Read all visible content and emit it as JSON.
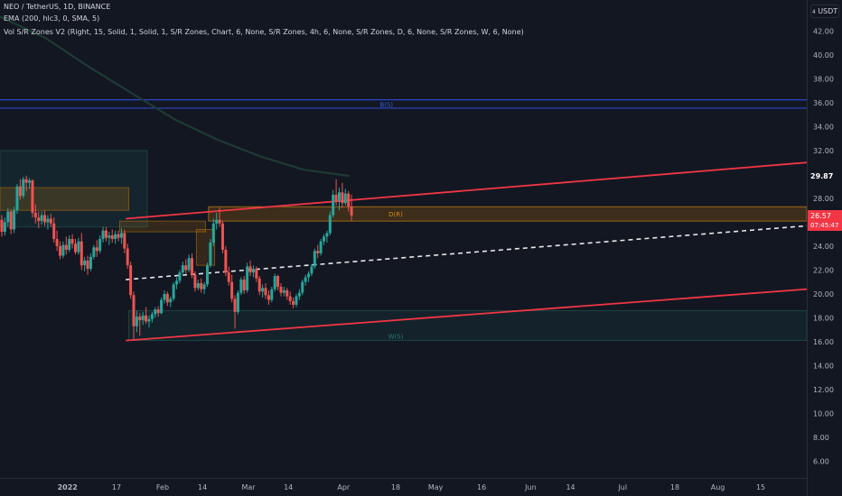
{
  "header": {
    "symbol_line": "NEO / TetherUS, 1D, BINANCE",
    "indicator_ema": "EMA (200, hlc3, 0, SMA, 5)",
    "indicator_zones": "Vol S/R Zones V2 (Right, 15, Solid, 1, Solid, 1, S/R Zones, Chart, 6, None, S/R Zones, 4h, 6, None, S/R Zones, D, 6, None, S/R Zones, W, 6, None)"
  },
  "currency_label": "USDT",
  "current_price": {
    "value": "26.57",
    "countdown": "07:45:47",
    "color": "#f23645"
  },
  "ema_value": {
    "value": "29.87",
    "color": "#1e3b34"
  },
  "chart_data": {
    "type": "candlestick",
    "title": "NEO / TetherUS, 1D, BINANCE",
    "y_axis": {
      "side": "right",
      "ticks": [
        "42.00",
        "40.00",
        "38.00",
        "36.00",
        "34.00",
        "32.00",
        "30.00",
        "28.00",
        "26.00",
        "24.00",
        "22.00",
        "20.00",
        "18.00",
        "16.00",
        "14.00",
        "12.00",
        "10.00",
        "8.00",
        "6.00"
      ],
      "range": [
        4.6,
        44.6
      ]
    },
    "x_axis": {
      "ticks": [
        {
          "label": "2022",
          "date": "2022-01-01"
        },
        {
          "label": "17",
          "date": "2022-01-17"
        },
        {
          "label": "Feb",
          "date": "2022-02-01"
        },
        {
          "label": "14",
          "date": "2022-02-14"
        },
        {
          "label": "Mar",
          "date": "2022-03-01"
        },
        {
          "label": "14",
          "date": "2022-03-14"
        },
        {
          "label": "Apr",
          "date": "2022-04-01"
        },
        {
          "label": "18",
          "date": "2022-04-18"
        },
        {
          "label": "May",
          "date": "2022-05-01"
        },
        {
          "label": "16",
          "date": "2022-05-16"
        },
        {
          "label": "Jun",
          "date": "2022-06-01"
        },
        {
          "label": "14",
          "date": "2022-06-14"
        },
        {
          "label": "Jul",
          "date": "2022-07-01"
        },
        {
          "label": "18",
          "date": "2022-07-18"
        },
        {
          "label": "Aug",
          "date": "2022-08-01"
        },
        {
          "label": "15",
          "date": "2022-08-15"
        }
      ],
      "range": [
        "2021-12-10",
        "2022-08-30"
      ]
    },
    "colors": {
      "up": "#26a69a",
      "down": "#ef5350"
    },
    "candles": [
      {
        "date": "2021-12-10",
        "o": 26.2,
        "h": 26.6,
        "l": 24.8,
        "c": 25.2
      },
      {
        "date": "2021-12-11",
        "o": 25.2,
        "h": 26.4,
        "l": 24.9,
        "c": 26.0
      },
      {
        "date": "2021-12-12",
        "o": 26.0,
        "h": 27.2,
        "l": 25.6,
        "c": 26.9
      },
      {
        "date": "2021-12-13",
        "o": 26.9,
        "h": 27.1,
        "l": 25.0,
        "c": 25.4
      },
      {
        "date": "2021-12-14",
        "o": 25.4,
        "h": 27.3,
        "l": 25.1,
        "c": 27.0
      },
      {
        "date": "2021-12-15",
        "o": 27.0,
        "h": 29.2,
        "l": 26.7,
        "c": 29.0
      },
      {
        "date": "2021-12-16",
        "o": 29.0,
        "h": 29.6,
        "l": 27.9,
        "c": 28.2
      },
      {
        "date": "2021-12-17",
        "o": 28.2,
        "h": 29.8,
        "l": 28.0,
        "c": 29.6
      },
      {
        "date": "2021-12-18",
        "o": 29.6,
        "h": 29.9,
        "l": 28.6,
        "c": 29.3
      },
      {
        "date": "2021-12-19",
        "o": 29.3,
        "h": 29.7,
        "l": 28.8,
        "c": 29.5
      },
      {
        "date": "2021-12-20",
        "o": 29.5,
        "h": 29.6,
        "l": 26.4,
        "c": 26.8
      },
      {
        "date": "2021-12-21",
        "o": 26.8,
        "h": 27.5,
        "l": 25.9,
        "c": 26.4
      },
      {
        "date": "2021-12-22",
        "o": 26.4,
        "h": 26.9,
        "l": 25.5,
        "c": 26.1
      },
      {
        "date": "2021-12-23",
        "o": 26.1,
        "h": 26.9,
        "l": 25.8,
        "c": 26.6
      },
      {
        "date": "2021-12-24",
        "o": 26.6,
        "h": 27.0,
        "l": 25.7,
        "c": 26.0
      },
      {
        "date": "2021-12-25",
        "o": 26.0,
        "h": 26.6,
        "l": 25.4,
        "c": 26.3
      },
      {
        "date": "2021-12-26",
        "o": 26.3,
        "h": 26.7,
        "l": 25.6,
        "c": 25.9
      },
      {
        "date": "2021-12-27",
        "o": 25.9,
        "h": 26.4,
        "l": 24.3,
        "c": 24.6
      },
      {
        "date": "2021-12-28",
        "o": 24.6,
        "h": 25.3,
        "l": 23.6,
        "c": 24.0
      },
      {
        "date": "2021-12-29",
        "o": 24.0,
        "h": 24.4,
        "l": 22.9,
        "c": 23.2
      },
      {
        "date": "2021-12-30",
        "o": 23.2,
        "h": 24.4,
        "l": 23.0,
        "c": 24.1
      },
      {
        "date": "2021-12-31",
        "o": 24.1,
        "h": 24.8,
        "l": 23.3,
        "c": 23.7
      },
      {
        "date": "2022-01-01",
        "o": 23.7,
        "h": 24.9,
        "l": 23.5,
        "c": 24.6
      },
      {
        "date": "2022-01-02",
        "o": 24.6,
        "h": 25.0,
        "l": 23.8,
        "c": 24.2
      },
      {
        "date": "2022-01-03",
        "o": 24.2,
        "h": 24.6,
        "l": 23.3,
        "c": 23.5
      },
      {
        "date": "2022-01-04",
        "o": 23.5,
        "h": 24.7,
        "l": 23.3,
        "c": 24.4
      },
      {
        "date": "2022-01-05",
        "o": 24.4,
        "h": 25.1,
        "l": 22.0,
        "c": 22.4
      },
      {
        "date": "2022-01-06",
        "o": 22.4,
        "h": 23.1,
        "l": 21.9,
        "c": 22.8
      },
      {
        "date": "2022-01-07",
        "o": 22.8,
        "h": 23.2,
        "l": 21.6,
        "c": 22.1
      },
      {
        "date": "2022-01-08",
        "o": 22.1,
        "h": 23.4,
        "l": 21.9,
        "c": 23.1
      },
      {
        "date": "2022-01-09",
        "o": 23.1,
        "h": 24.1,
        "l": 22.9,
        "c": 23.9
      },
      {
        "date": "2022-01-10",
        "o": 23.9,
        "h": 24.5,
        "l": 23.1,
        "c": 23.6
      },
      {
        "date": "2022-01-11",
        "o": 23.6,
        "h": 24.9,
        "l": 23.4,
        "c": 24.6
      },
      {
        "date": "2022-01-12",
        "o": 24.6,
        "h": 25.6,
        "l": 24.3,
        "c": 25.3
      },
      {
        "date": "2022-01-13",
        "o": 25.3,
        "h": 25.6,
        "l": 24.4,
        "c": 24.7
      },
      {
        "date": "2022-01-14",
        "o": 24.7,
        "h": 25.2,
        "l": 24.1,
        "c": 24.9
      },
      {
        "date": "2022-01-15",
        "o": 24.9,
        "h": 25.4,
        "l": 24.3,
        "c": 24.6
      },
      {
        "date": "2022-01-16",
        "o": 24.6,
        "h": 25.3,
        "l": 24.2,
        "c": 25.0
      },
      {
        "date": "2022-01-17",
        "o": 25.0,
        "h": 25.3,
        "l": 24.4,
        "c": 24.7
      },
      {
        "date": "2022-01-18",
        "o": 24.7,
        "h": 25.5,
        "l": 24.2,
        "c": 25.1
      },
      {
        "date": "2022-01-19",
        "o": 25.1,
        "h": 25.4,
        "l": 23.4,
        "c": 23.8
      },
      {
        "date": "2022-01-20",
        "o": 23.8,
        "h": 24.2,
        "l": 22.1,
        "c": 22.4
      },
      {
        "date": "2022-01-21",
        "o": 22.4,
        "h": 22.7,
        "l": 19.6,
        "c": 19.9
      },
      {
        "date": "2022-01-22",
        "o": 19.9,
        "h": 20.2,
        "l": 16.2,
        "c": 17.3
      },
      {
        "date": "2022-01-23",
        "o": 17.3,
        "h": 18.6,
        "l": 16.8,
        "c": 18.1
      },
      {
        "date": "2022-01-24",
        "o": 18.1,
        "h": 18.4,
        "l": 16.5,
        "c": 17.8
      },
      {
        "date": "2022-01-25",
        "o": 17.8,
        "h": 18.5,
        "l": 17.4,
        "c": 18.2
      },
      {
        "date": "2022-01-26",
        "o": 18.2,
        "h": 18.9,
        "l": 17.5,
        "c": 17.7
      },
      {
        "date": "2022-01-27",
        "o": 17.7,
        "h": 18.2,
        "l": 17.2,
        "c": 17.9
      },
      {
        "date": "2022-01-28",
        "o": 17.9,
        "h": 18.5,
        "l": 17.6,
        "c": 18.3
      },
      {
        "date": "2022-01-29",
        "o": 18.3,
        "h": 18.9,
        "l": 18.0,
        "c": 18.7
      },
      {
        "date": "2022-01-30",
        "o": 18.7,
        "h": 19.0,
        "l": 18.1,
        "c": 18.4
      },
      {
        "date": "2022-01-31",
        "o": 18.4,
        "h": 19.7,
        "l": 18.3,
        "c": 19.5
      },
      {
        "date": "2022-02-01",
        "o": 19.5,
        "h": 20.3,
        "l": 19.2,
        "c": 20.0
      },
      {
        "date": "2022-02-02",
        "o": 20.0,
        "h": 20.2,
        "l": 19.0,
        "c": 19.3
      },
      {
        "date": "2022-02-03",
        "o": 19.3,
        "h": 19.8,
        "l": 18.9,
        "c": 19.6
      },
      {
        "date": "2022-02-04",
        "o": 19.6,
        "h": 21.0,
        "l": 19.4,
        "c": 20.8
      },
      {
        "date": "2022-02-05",
        "o": 20.8,
        "h": 21.4,
        "l": 20.4,
        "c": 21.1
      },
      {
        "date": "2022-02-06",
        "o": 21.1,
        "h": 22.0,
        "l": 20.9,
        "c": 21.8
      },
      {
        "date": "2022-02-07",
        "o": 21.8,
        "h": 22.7,
        "l": 21.5,
        "c": 22.4
      },
      {
        "date": "2022-02-08",
        "o": 22.4,
        "h": 22.9,
        "l": 21.7,
        "c": 22.0
      },
      {
        "date": "2022-02-09",
        "o": 22.0,
        "h": 23.3,
        "l": 21.8,
        "c": 23.0
      },
      {
        "date": "2022-02-10",
        "o": 23.0,
        "h": 23.4,
        "l": 21.3,
        "c": 21.6
      },
      {
        "date": "2022-02-11",
        "o": 21.6,
        "h": 21.9,
        "l": 20.2,
        "c": 20.5
      },
      {
        "date": "2022-02-12",
        "o": 20.5,
        "h": 21.2,
        "l": 20.3,
        "c": 20.9
      },
      {
        "date": "2022-02-13",
        "o": 20.9,
        "h": 21.3,
        "l": 20.1,
        "c": 20.4
      },
      {
        "date": "2022-02-14",
        "o": 20.4,
        "h": 21.0,
        "l": 20.0,
        "c": 20.8
      },
      {
        "date": "2022-02-15",
        "o": 20.8,
        "h": 22.6,
        "l": 20.6,
        "c": 22.4
      },
      {
        "date": "2022-02-16",
        "o": 22.4,
        "h": 24.6,
        "l": 22.2,
        "c": 24.3
      },
      {
        "date": "2022-02-17",
        "o": 24.3,
        "h": 26.3,
        "l": 24.0,
        "c": 25.9
      },
      {
        "date": "2022-02-18",
        "o": 25.9,
        "h": 26.8,
        "l": 25.4,
        "c": 26.2
      },
      {
        "date": "2022-02-19",
        "o": 26.2,
        "h": 27.2,
        "l": 25.6,
        "c": 25.9
      },
      {
        "date": "2022-02-20",
        "o": 25.9,
        "h": 26.1,
        "l": 23.4,
        "c": 23.7
      },
      {
        "date": "2022-02-21",
        "o": 23.7,
        "h": 24.0,
        "l": 21.5,
        "c": 21.8
      },
      {
        "date": "2022-02-22",
        "o": 21.8,
        "h": 22.3,
        "l": 20.7,
        "c": 21.0
      },
      {
        "date": "2022-02-23",
        "o": 21.0,
        "h": 21.6,
        "l": 19.3,
        "c": 19.6
      },
      {
        "date": "2022-02-24",
        "o": 19.6,
        "h": 19.9,
        "l": 17.1,
        "c": 18.5
      },
      {
        "date": "2022-02-25",
        "o": 18.5,
        "h": 20.3,
        "l": 18.3,
        "c": 20.1
      },
      {
        "date": "2022-02-26",
        "o": 20.1,
        "h": 21.4,
        "l": 19.9,
        "c": 21.2
      },
      {
        "date": "2022-02-27",
        "o": 21.2,
        "h": 21.5,
        "l": 20.0,
        "c": 20.3
      },
      {
        "date": "2022-02-28",
        "o": 20.3,
        "h": 22.6,
        "l": 20.1,
        "c": 22.3
      },
      {
        "date": "2022-03-01",
        "o": 22.3,
        "h": 22.8,
        "l": 21.5,
        "c": 21.8
      },
      {
        "date": "2022-03-02",
        "o": 21.8,
        "h": 22.4,
        "l": 21.4,
        "c": 22.1
      },
      {
        "date": "2022-03-03",
        "o": 22.1,
        "h": 22.3,
        "l": 21.0,
        "c": 21.3
      },
      {
        "date": "2022-03-04",
        "o": 21.3,
        "h": 21.5,
        "l": 19.9,
        "c": 20.2
      },
      {
        "date": "2022-03-05",
        "o": 20.2,
        "h": 20.8,
        "l": 19.7,
        "c": 20.5
      },
      {
        "date": "2022-03-06",
        "o": 20.5,
        "h": 20.9,
        "l": 19.6,
        "c": 19.9
      },
      {
        "date": "2022-03-07",
        "o": 19.9,
        "h": 20.3,
        "l": 19.1,
        "c": 19.5
      },
      {
        "date": "2022-03-08",
        "o": 19.5,
        "h": 20.6,
        "l": 19.3,
        "c": 20.4
      },
      {
        "date": "2022-03-09",
        "o": 20.4,
        "h": 21.7,
        "l": 20.2,
        "c": 21.5
      },
      {
        "date": "2022-03-10",
        "o": 21.5,
        "h": 21.6,
        "l": 20.3,
        "c": 20.6
      },
      {
        "date": "2022-03-11",
        "o": 20.6,
        "h": 20.9,
        "l": 19.8,
        "c": 20.1
      },
      {
        "date": "2022-03-12",
        "o": 20.1,
        "h": 20.6,
        "l": 19.8,
        "c": 20.3
      },
      {
        "date": "2022-03-13",
        "o": 20.3,
        "h": 20.5,
        "l": 19.5,
        "c": 19.8
      },
      {
        "date": "2022-03-14",
        "o": 19.8,
        "h": 20.2,
        "l": 19.1,
        "c": 19.4
      },
      {
        "date": "2022-03-15",
        "o": 19.4,
        "h": 19.7,
        "l": 18.8,
        "c": 19.1
      },
      {
        "date": "2022-03-16",
        "o": 19.1,
        "h": 20.0,
        "l": 18.9,
        "c": 19.8
      },
      {
        "date": "2022-03-17",
        "o": 19.8,
        "h": 20.4,
        "l": 19.5,
        "c": 20.1
      },
      {
        "date": "2022-03-18",
        "o": 20.1,
        "h": 21.2,
        "l": 19.9,
        "c": 21.0
      },
      {
        "date": "2022-03-19",
        "o": 21.0,
        "h": 21.6,
        "l": 20.7,
        "c": 21.4
      },
      {
        "date": "2022-03-20",
        "o": 21.4,
        "h": 21.9,
        "l": 21.0,
        "c": 21.7
      },
      {
        "date": "2022-03-21",
        "o": 21.7,
        "h": 22.5,
        "l": 21.5,
        "c": 22.3
      },
      {
        "date": "2022-03-22",
        "o": 22.3,
        "h": 23.8,
        "l": 22.1,
        "c": 23.6
      },
      {
        "date": "2022-03-23",
        "o": 23.6,
        "h": 24.1,
        "l": 23.0,
        "c": 23.4
      },
      {
        "date": "2022-03-24",
        "o": 23.4,
        "h": 24.6,
        "l": 23.2,
        "c": 24.4
      },
      {
        "date": "2022-03-25",
        "o": 24.4,
        "h": 25.0,
        "l": 24.1,
        "c": 24.8
      },
      {
        "date": "2022-03-26",
        "o": 24.8,
        "h": 25.3,
        "l": 24.3,
        "c": 25.1
      },
      {
        "date": "2022-03-27",
        "o": 25.1,
        "h": 26.9,
        "l": 24.9,
        "c": 26.6
      },
      {
        "date": "2022-03-28",
        "o": 26.6,
        "h": 28.7,
        "l": 26.4,
        "c": 28.3
      },
      {
        "date": "2022-03-29",
        "o": 28.3,
        "h": 29.6,
        "l": 27.4,
        "c": 27.8
      },
      {
        "date": "2022-03-30",
        "o": 27.8,
        "h": 28.9,
        "l": 27.0,
        "c": 28.5
      },
      {
        "date": "2022-03-31",
        "o": 28.5,
        "h": 29.3,
        "l": 27.2,
        "c": 27.6
      },
      {
        "date": "2022-04-01",
        "o": 27.6,
        "h": 28.8,
        "l": 27.4,
        "c": 28.4
      },
      {
        "date": "2022-04-02",
        "o": 28.4,
        "h": 28.6,
        "l": 26.9,
        "c": 27.3
      },
      {
        "date": "2022-04-03",
        "o": 27.3,
        "h": 28.3,
        "l": 26.1,
        "c": 26.57
      }
    ],
    "ema": {
      "name": "EMA",
      "color": "#1e3b34",
      "points": [
        {
          "date": "2021-12-10",
          "v": 43.2
        },
        {
          "date": "2021-12-25",
          "v": 41.4
        },
        {
          "date": "2022-01-08",
          "v": 39.0
        },
        {
          "date": "2022-01-22",
          "v": 36.8
        },
        {
          "date": "2022-02-05",
          "v": 34.6
        },
        {
          "date": "2022-02-19",
          "v": 32.9
        },
        {
          "date": "2022-03-05",
          "v": 31.5
        },
        {
          "date": "2022-03-19",
          "v": 30.4
        },
        {
          "date": "2022-04-03",
          "v": 29.87
        }
      ]
    },
    "zones": [
      {
        "label": "",
        "from": "2021-12-10",
        "to": "2022-01-27",
        "low": 25.6,
        "high": 32.0,
        "fill": "rgba(38,166,154,0.10)",
        "stroke": "#1e4a46"
      },
      {
        "label": "",
        "from": "2021-12-10",
        "to": "2022-01-21",
        "low": 27.0,
        "high": 28.9,
        "fill": "rgba(255,152,0,0.16)",
        "stroke": "#8a5a12"
      },
      {
        "label": "",
        "from": "2022-01-18",
        "to": "2022-02-15",
        "low": 25.2,
        "high": 26.1,
        "fill": "rgba(255,152,0,0.14)",
        "stroke": "#8a5a12"
      },
      {
        "label": "",
        "from": "2022-02-12",
        "to": "2022-02-18",
        "low": 22.4,
        "high": 25.4,
        "fill": "rgba(255,152,0,0.14)",
        "stroke": "#8a5a12"
      },
      {
        "label": "D(R)",
        "from": "2022-02-16",
        "to": "2022-08-30",
        "low": 26.1,
        "high": 27.3,
        "fill": "rgba(255,152,0,0.18)",
        "stroke": "#b97a16",
        "label_color": "#d38a19"
      },
      {
        "label": "W(S)",
        "from": "2022-01-21",
        "to": "2022-08-30",
        "low": 16.1,
        "high": 18.6,
        "fill": "rgba(38,166,154,0.08)",
        "stroke": "#1f4d48",
        "label_color": "#2b7a70"
      }
    ],
    "lines": [
      {
        "label": "B(S)",
        "name": "resistance-band",
        "price": 35.9,
        "band": 0.35,
        "color": "#2d45c9",
        "label_color": "#3a5bd9",
        "label_date": "2022-04-15"
      },
      {
        "name": "upper-trendline",
        "from_date": "2022-01-20",
        "from_price": 26.3,
        "to_date": "2022-08-30",
        "to_price": 31.0,
        "color": "#f23645",
        "width": 1.8
      },
      {
        "name": "lower-trendline",
        "from_date": "2022-01-20",
        "from_price": 16.1,
        "to_date": "2022-08-30",
        "to_price": 20.4,
        "color": "#f23645",
        "width": 1.8
      },
      {
        "name": "mid-trendline",
        "from_date": "2022-01-20",
        "from_price": 21.2,
        "to_date": "2022-08-30",
        "to_price": 25.7,
        "color": "#e8e8e8",
        "width": 1.6,
        "dashed": true
      }
    ],
    "grid": false
  }
}
